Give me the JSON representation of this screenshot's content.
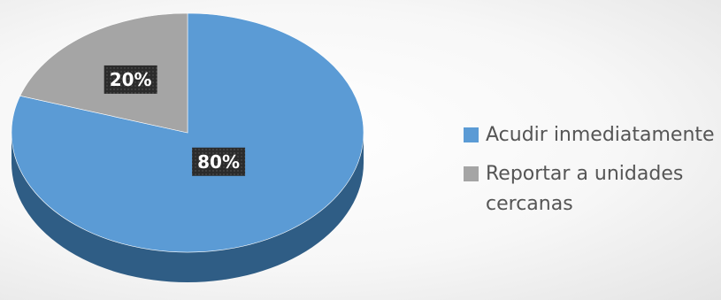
{
  "chart_data": {
    "type": "pie",
    "style": "3d",
    "categories": [
      "Acudir inmediatamente",
      "Reportar a unidades cercanas"
    ],
    "values": [
      80,
      20
    ],
    "data_labels": [
      "80%",
      "20%"
    ],
    "colors": [
      "#5B9BD5",
      "#A5A5A5"
    ],
    "side_colors": [
      "#2F5D85",
      "#6E6E6E"
    ],
    "legend_position": "right",
    "title": ""
  }
}
